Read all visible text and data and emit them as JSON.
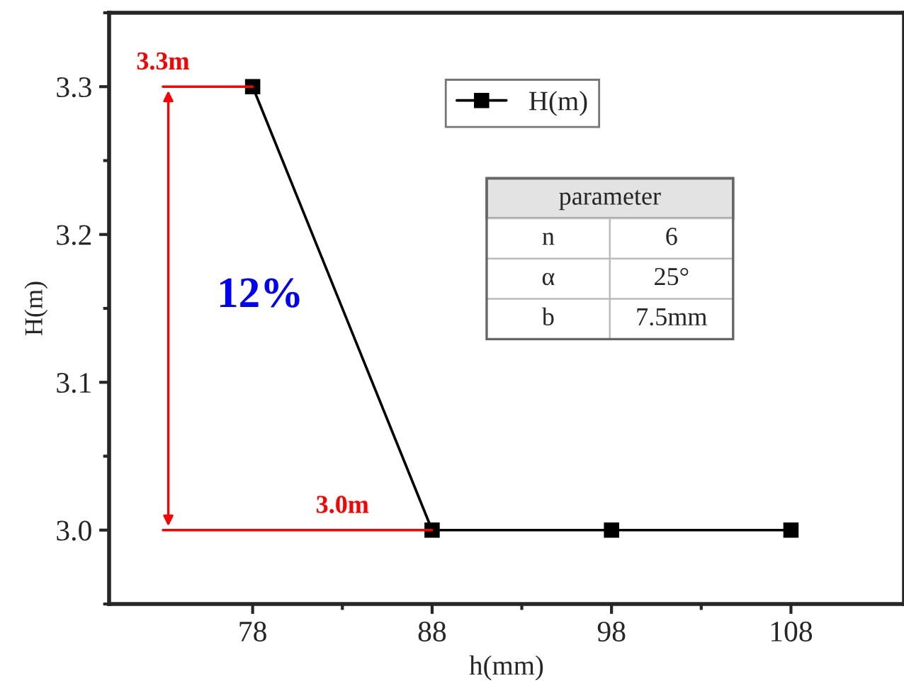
{
  "chart_data": {
    "type": "line",
    "xlabel": "h(mm)",
    "ylabel": "H(m)",
    "x": [
      78,
      88,
      98,
      108
    ],
    "series": [
      {
        "name": "H(m)",
        "color": "#000000",
        "values": [
          3.3,
          3.0,
          3.0,
          3.0
        ]
      }
    ],
    "xlim": [
      70,
      114.3
    ],
    "xticks": [
      78,
      88,
      98,
      108
    ],
    "ylim": [
      2.95,
      3.35
    ],
    "yticks": [
      {
        "value": 3.0,
        "label": "3.0"
      },
      {
        "value": 3.1,
        "label": "3.1"
      },
      {
        "value": 3.2,
        "label": "3.2"
      },
      {
        "value": 3.3,
        "label": "3.3"
      }
    ],
    "marker": "square",
    "line_style": "solid",
    "grid": false,
    "legend": "top",
    "annotations": [
      {
        "text": "3.3m",
        "x": 78,
        "y": 3.3
      },
      {
        "text": "3.0m",
        "x": 88,
        "y": 3.0
      },
      "12%",
      "parameter",
      "n",
      "6",
      "α",
      "25°",
      "b",
      "7.5mm"
    ]
  }
}
